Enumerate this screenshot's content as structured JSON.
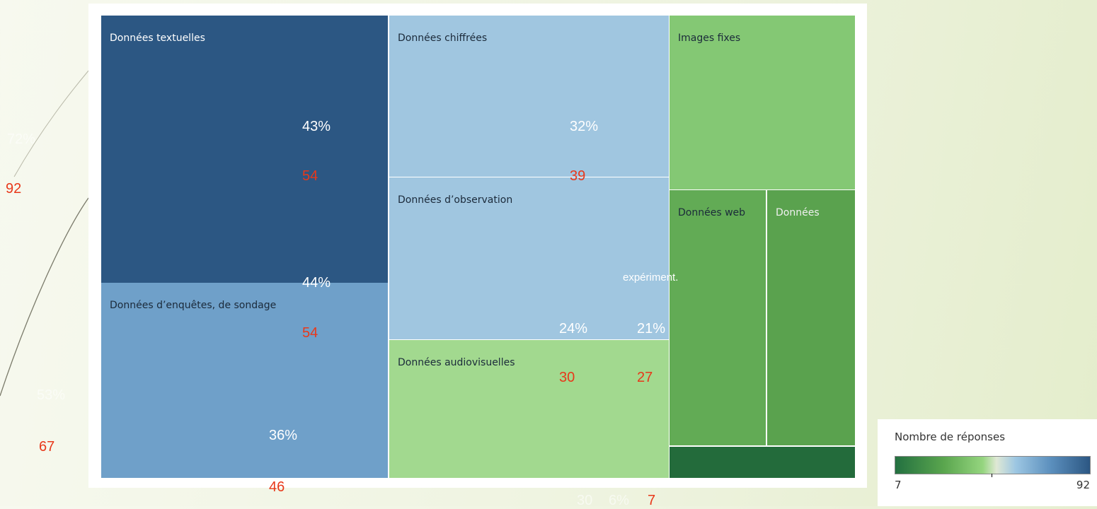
{
  "treemap": {
    "tiles": [
      {
        "label": "Données textuelles"
      },
      {
        "label": "Données d’enquêtes, de sondage"
      },
      {
        "label": "Données chiffrées"
      },
      {
        "label": "Données d’observation"
      },
      {
        "label": "Données audiovisuelles"
      },
      {
        "label": "Images fixes"
      },
      {
        "label": "Données web"
      },
      {
        "label": "Données"
      }
    ]
  },
  "overlay": [
    "72%",
    92,
    "43%",
    54,
    "32%",
    39,
    "44%",
    54,
    "24%",
    "21%",
    30,
    27,
    "53%",
    67,
    "36%",
    46,
    "30",
    "6%",
    7,
    "expériment."
  ],
  "legend": {
    "title": "Nombre de réponses",
    "min": 7,
    "max": 92
  }
}
